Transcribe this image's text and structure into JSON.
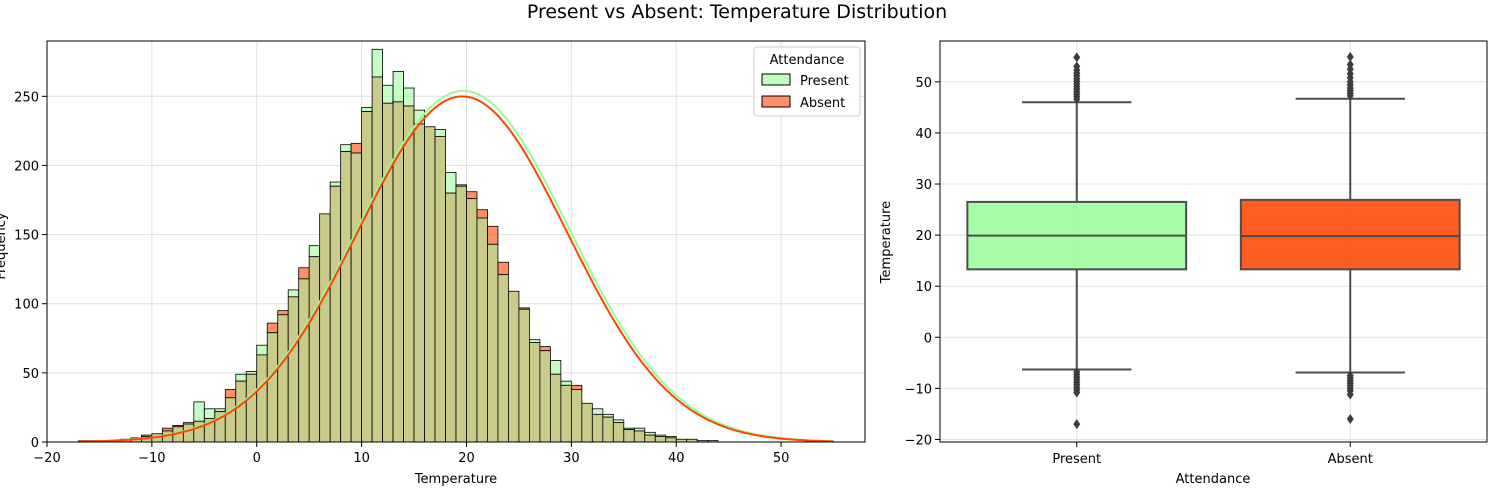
{
  "figure_title": "Present vs Absent: Temperature Distribution",
  "colors": {
    "present": "#98fb98",
    "absent": "#ff4500",
    "overlap": "#c9cb8a",
    "box_line": "#4d4d4d"
  },
  "chart_data": [
    {
      "type": "histogram",
      "title": "",
      "xlabel": "Temperature",
      "ylabel": "Frequency",
      "xlim": [
        -20,
        58
      ],
      "ylim": [
        0,
        290
      ],
      "xticks": [
        -20,
        -10,
        0,
        10,
        20,
        30,
        40,
        50
      ],
      "yticks": [
        0,
        50,
        100,
        150,
        200,
        250
      ],
      "grid": true,
      "legend": {
        "title": "Attendance",
        "position": "top-right",
        "entries": [
          "Present",
          "Absent"
        ]
      },
      "bin_start": -17.0,
      "bin_width": 1.0,
      "series": [
        {
          "name": "Present",
          "values": [
            1,
            1,
            1,
            1,
            2,
            3,
            4,
            6,
            8,
            11,
            14,
            29,
            24,
            24,
            32,
            49,
            51,
            70,
            79,
            92,
            110,
            118,
            142,
            165,
            188,
            215,
            209,
            242,
            284,
            258,
            268,
            256,
            240,
            228,
            226,
            195,
            186,
            176,
            162,
            143,
            121,
            109,
            96,
            74,
            66,
            59,
            44,
            38,
            28,
            24,
            20,
            16,
            10,
            10,
            7,
            5,
            4,
            2,
            2,
            1,
            1
          ]
        },
        {
          "name": "Absent",
          "values": [
            1,
            1,
            1,
            1,
            2,
            3,
            5,
            6,
            10,
            12,
            13,
            15,
            17,
            22,
            38,
            44,
            49,
            63,
            86,
            95,
            105,
            126,
            134,
            165,
            185,
            210,
            216,
            239,
            264,
            245,
            246,
            243,
            230,
            228,
            221,
            180,
            185,
            181,
            168,
            156,
            130,
            109,
            97,
            72,
            69,
            49,
            41,
            41,
            28,
            20,
            18,
            14,
            9,
            8,
            5,
            4,
            3,
            2,
            2,
            1,
            1
          ]
        }
      ],
      "kde": [
        {
          "name": "Present",
          "mean": 19.7,
          "sd": 10.1,
          "peak": 254
        },
        {
          "name": "Absent",
          "mean": 19.6,
          "sd": 10.0,
          "peak": 250
        }
      ]
    },
    {
      "type": "box",
      "title": "",
      "xlabel": "Attendance",
      "ylabel": "Temperature",
      "categories": [
        "Present",
        "Absent"
      ],
      "ylim": [
        -20.5,
        58
      ],
      "yticks": [
        -20,
        -10,
        0,
        10,
        20,
        30,
        40,
        50
      ],
      "grid": true,
      "boxes": [
        {
          "name": "Present",
          "whisker_low": -6.3,
          "q1": 13.3,
          "median": 19.9,
          "q3": 26.5,
          "whisker_high": 46.0,
          "outliers": [
            -6.8,
            -7.3,
            -7.8,
            -8.3,
            -8.8,
            -9.3,
            -9.8,
            -10.3,
            -10.8,
            -17.0,
            46.6,
            47.1,
            47.6,
            48.1,
            48.6,
            49.1,
            49.6,
            50.1,
            50.6,
            51.2,
            51.7,
            52.3,
            53.0,
            54.8
          ]
        },
        {
          "name": "Absent",
          "whisker_low": -6.9,
          "q1": 13.3,
          "median": 19.8,
          "q3": 26.9,
          "whisker_high": 46.7,
          "outliers": [
            -7.5,
            -8.0,
            -8.5,
            -9.0,
            -9.5,
            -10.0,
            -10.5,
            -11.2,
            -16.0,
            47.3,
            47.8,
            48.3,
            48.8,
            49.4,
            50.0,
            50.8,
            51.6,
            52.5,
            53.4,
            54.9
          ]
        }
      ]
    }
  ]
}
